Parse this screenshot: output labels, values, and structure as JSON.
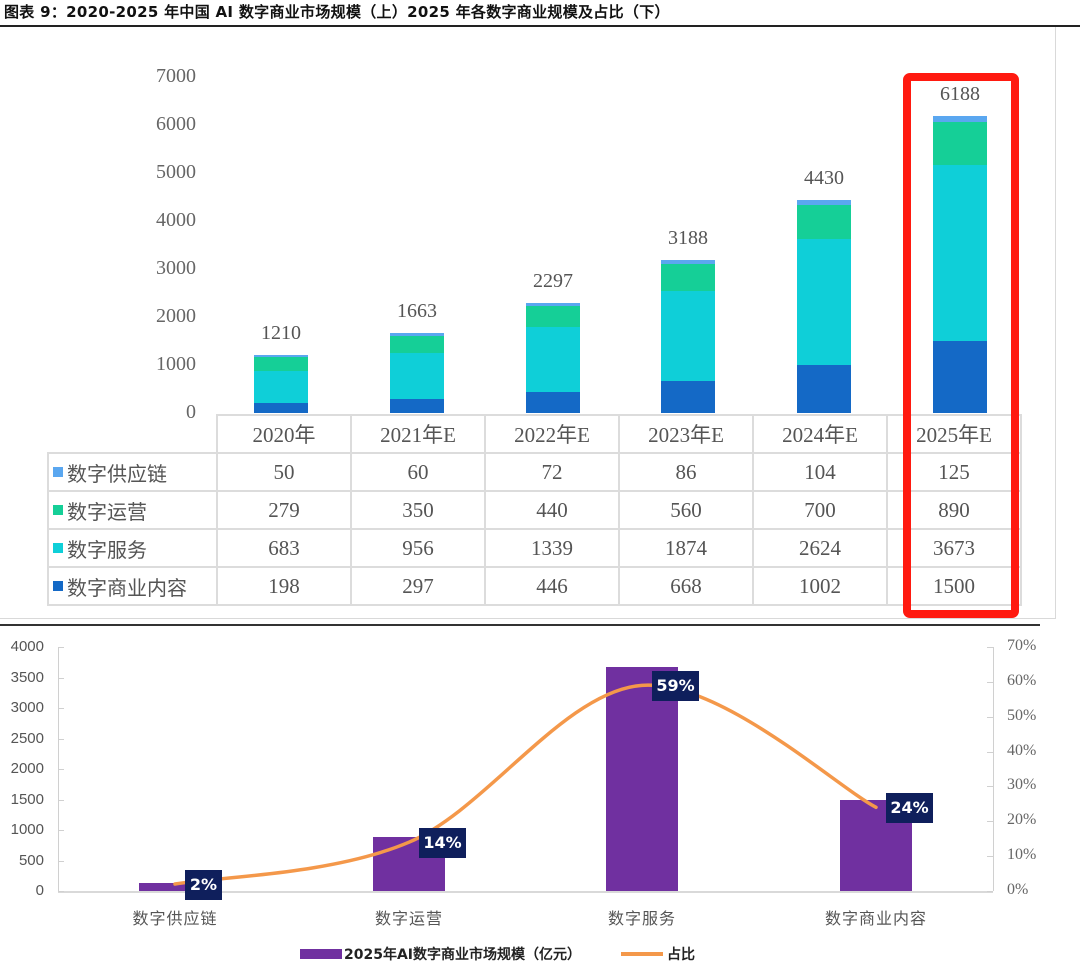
{
  "title": "图表 9：2020-2025 年中国 AI 数字商业市场规模（上）2025 年各数字商业规模及占比（下）",
  "colors": {
    "supply_chain": "#5aa7f0",
    "operations": "#15cf97",
    "services": "#0fcfd8",
    "content": "#1469c6",
    "highlight": "#ff1a10",
    "bottom_bar": "#7030a0",
    "bottom_line": "#f4984a",
    "label_bg": "#0f1f5c"
  },
  "chart_data": [
    {
      "type": "bar",
      "stacked": true,
      "title": "2020-2025年中国AI数字商业市场规模",
      "categories": [
        "2020年",
        "2021年E",
        "2022年E",
        "2023年E",
        "2024年E",
        "2025年E"
      ],
      "series": [
        {
          "name": "数字供应链",
          "values": [
            50,
            60,
            72,
            86,
            104,
            125
          ]
        },
        {
          "name": "数字运营",
          "values": [
            279,
            350,
            440,
            560,
            700,
            890
          ]
        },
        {
          "name": "数字服务",
          "values": [
            683,
            956,
            1339,
            1874,
            2624,
            3673
          ]
        },
        {
          "name": "数字商业内容",
          "values": [
            198,
            297,
            446,
            668,
            1002,
            1500
          ]
        }
      ],
      "totals": [
        1210,
        1663,
        2297,
        3188,
        4430,
        6188
      ],
      "yticks": [
        "0",
        "1000",
        "2000",
        "3000",
        "4000",
        "5000",
        "6000",
        "7000"
      ],
      "ylim": [
        0,
        7000
      ],
      "xlabel": "",
      "ylabel": "",
      "legend_position": "data-table",
      "grid": false,
      "annotations": [
        "2025年E column highlighted with red box"
      ]
    },
    {
      "type": "bar+line",
      "title": "2025年各数字商业规模及占比",
      "categories": [
        "数字供应链",
        "数字运营",
        "数字服务",
        "数字商业内容"
      ],
      "series": [
        {
          "name": "2025年AI数字商业市场规模（亿元）",
          "type": "bar",
          "axis": "left",
          "values": [
            125,
            890,
            3673,
            1500
          ]
        },
        {
          "name": "占比",
          "type": "line",
          "axis": "right",
          "values": [
            2,
            14,
            59,
            24
          ],
          "labels": [
            "2%",
            "14%",
            "59%",
            "24%"
          ]
        }
      ],
      "yticks_left": [
        "0",
        "500",
        "1000",
        "1500",
        "2000",
        "2500",
        "3000",
        "3500",
        "4000"
      ],
      "ylim_left": [
        0,
        4000
      ],
      "yticks_right": [
        "0%",
        "10%",
        "20%",
        "30%",
        "40%",
        "50%",
        "60%",
        "70%"
      ],
      "ylim_right": [
        0,
        70
      ],
      "legend_position": "bottom",
      "grid": false
    }
  ],
  "top": {
    "yticks": [
      "0",
      "1000",
      "2000",
      "3000",
      "4000",
      "5000",
      "6000",
      "7000"
    ],
    "totals": [
      "1210",
      "1663",
      "2297",
      "3188",
      "4430",
      "6188"
    ],
    "table": {
      "headers": [
        "2020年",
        "2021年E",
        "2022年E",
        "2023年E",
        "2024年E",
        "2025年E"
      ],
      "rows": [
        {
          "label": "数字供应链",
          "values": [
            "50",
            "60",
            "72",
            "86",
            "104",
            "125"
          ]
        },
        {
          "label": "数字运营",
          "values": [
            "279",
            "350",
            "440",
            "560",
            "700",
            "890"
          ]
        },
        {
          "label": "数字服务",
          "values": [
            "683",
            "956",
            "1339",
            "1874",
            "2624",
            "3673"
          ]
        },
        {
          "label": "数字商业内容",
          "values": [
            "198",
            "297",
            "446",
            "668",
            "1002",
            "1500"
          ]
        }
      ]
    }
  },
  "bottom": {
    "yticks_left": [
      "0",
      "500",
      "1000",
      "1500",
      "2000",
      "2500",
      "3000",
      "3500",
      "4000"
    ],
    "yticks_right": [
      "0%",
      "10%",
      "20%",
      "30%",
      "40%",
      "50%",
      "60%",
      "70%"
    ],
    "categories": [
      "数字供应链",
      "数字运营",
      "数字服务",
      "数字商业内容"
    ],
    "pct_labels": [
      "2%",
      "14%",
      "59%",
      "24%"
    ],
    "legend": {
      "bar": "2025年AI数字商业市场规模（亿元）",
      "line": "占比"
    }
  }
}
